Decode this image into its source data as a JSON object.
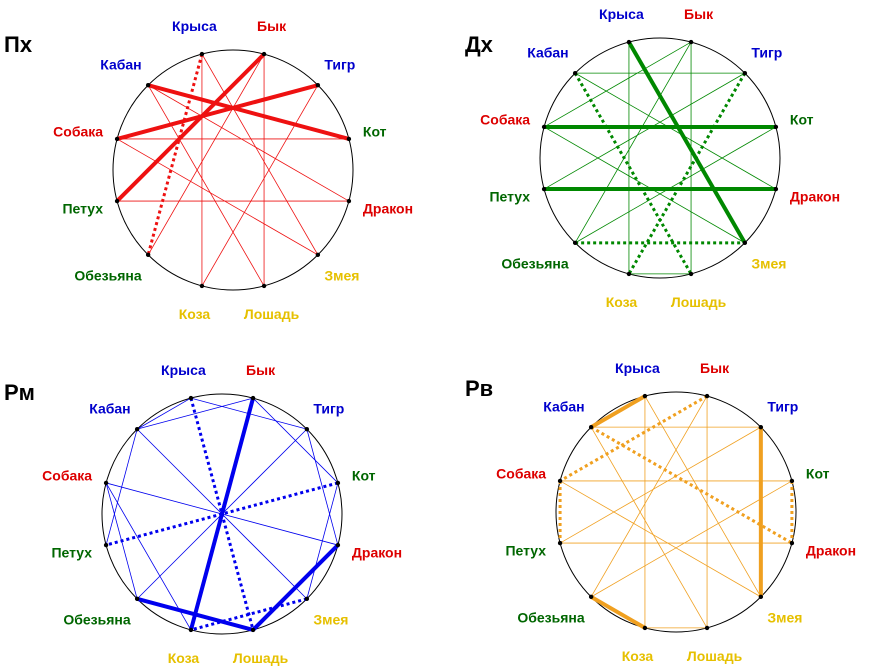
{
  "colors": {
    "blue": "#0000cc",
    "red": "#dd0000",
    "green": "#006600",
    "yellow": "#e6c000",
    "circle": "#000000"
  },
  "panels": [
    {
      "id": "px",
      "title": "Пх",
      "line_color": "#ee1111",
      "labels": [
        {
          "text": "Крыса",
          "color": "blue"
        },
        {
          "text": "Бык",
          "color": "red"
        },
        {
          "text": "Тигр",
          "color": "blue"
        },
        {
          "text": "Кот",
          "color": "green"
        },
        {
          "text": "Дракон",
          "color": "red"
        },
        {
          "text": "Змея",
          "color": "yellow"
        },
        {
          "text": "Лошадь",
          "color": "yellow"
        },
        {
          "text": "Коза",
          "color": "yellow"
        },
        {
          "text": "Обезьяна",
          "color": "green"
        },
        {
          "text": "Петух",
          "color": "green"
        },
        {
          "text": "Собака",
          "color": "red"
        },
        {
          "text": "Кабан",
          "color": "blue"
        }
      ],
      "lines": [
        {
          "from": 1,
          "to": 9,
          "style": "thick"
        },
        {
          "from": 2,
          "to": 10,
          "style": "thick"
        },
        {
          "from": 3,
          "to": 11,
          "style": "thick"
        },
        {
          "from": 0,
          "to": 8,
          "style": "dotted"
        },
        {
          "from": 0,
          "to": 5,
          "style": "thin"
        },
        {
          "from": 0,
          "to": 7,
          "style": "thin"
        },
        {
          "from": 1,
          "to": 6,
          "style": "thin"
        },
        {
          "from": 1,
          "to": 8,
          "style": "thin"
        },
        {
          "from": 2,
          "to": 7,
          "style": "thin"
        },
        {
          "from": 3,
          "to": 10,
          "style": "thin"
        },
        {
          "from": 4,
          "to": 9,
          "style": "thin"
        },
        {
          "from": 4,
          "to": 11,
          "style": "thin"
        },
        {
          "from": 5,
          "to": 10,
          "style": "thin"
        },
        {
          "from": 6,
          "to": 11,
          "style": "thin"
        }
      ]
    },
    {
      "id": "dx",
      "title": "Дх",
      "line_color": "#008800",
      "labels": [
        {
          "text": "Крыса",
          "color": "blue"
        },
        {
          "text": "Бык",
          "color": "red"
        },
        {
          "text": "Тигр",
          "color": "blue"
        },
        {
          "text": "Кот",
          "color": "green"
        },
        {
          "text": "Дракон",
          "color": "red"
        },
        {
          "text": "Змея",
          "color": "yellow"
        },
        {
          "text": "Лошадь",
          "color": "yellow"
        },
        {
          "text": "Коза",
          "color": "yellow"
        },
        {
          "text": "Обезьяна",
          "color": "green"
        },
        {
          "text": "Петух",
          "color": "green"
        },
        {
          "text": "Собака",
          "color": "red"
        },
        {
          "text": "Кабан",
          "color": "blue"
        }
      ],
      "lines": [
        {
          "from": 0,
          "to": 5,
          "style": "thick"
        },
        {
          "from": 3,
          "to": 10,
          "style": "thick"
        },
        {
          "from": 4,
          "to": 9,
          "style": "thick"
        },
        {
          "from": 11,
          "to": 6,
          "style": "dotted"
        },
        {
          "from": 2,
          "to": 7,
          "style": "dotted"
        },
        {
          "from": 8,
          "to": 5,
          "style": "dotted"
        },
        {
          "from": 11,
          "to": 2,
          "style": "thin"
        },
        {
          "from": 0,
          "to": 7,
          "style": "thin"
        },
        {
          "from": 1,
          "to": 6,
          "style": "thin"
        },
        {
          "from": 1,
          "to": 8,
          "style": "thin"
        },
        {
          "from": 11,
          "to": 4,
          "style": "thin"
        },
        {
          "from": 2,
          "to": 9,
          "style": "thin"
        },
        {
          "from": 10,
          "to": 5,
          "style": "thin"
        },
        {
          "from": 10,
          "to": 1,
          "style": "thin"
        },
        {
          "from": 3,
          "to": 8,
          "style": "thin"
        },
        {
          "from": 7,
          "to": 6,
          "style": "thin"
        }
      ]
    },
    {
      "id": "pm",
      "title": "Рм",
      "line_color": "#0000ee",
      "labels": [
        {
          "text": "Крыса",
          "color": "blue"
        },
        {
          "text": "Бык",
          "color": "red"
        },
        {
          "text": "Тигр",
          "color": "blue"
        },
        {
          "text": "Кот",
          "color": "green"
        },
        {
          "text": "Дракон",
          "color": "red"
        },
        {
          "text": "Змея",
          "color": "yellow"
        },
        {
          "text": "Лошадь",
          "color": "yellow"
        },
        {
          "text": "Коза",
          "color": "yellow"
        },
        {
          "text": "Обезьяна",
          "color": "green"
        },
        {
          "text": "Петух",
          "color": "green"
        },
        {
          "text": "Собака",
          "color": "red"
        },
        {
          "text": "Кабан",
          "color": "blue"
        }
      ],
      "lines": [
        {
          "from": 1,
          "to": 7,
          "style": "thick"
        },
        {
          "from": 4,
          "to": 6,
          "style": "thick"
        },
        {
          "from": 8,
          "to": 6,
          "style": "thick"
        },
        {
          "from": 0,
          "to": 6,
          "style": "dotted"
        },
        {
          "from": 3,
          "to": 9,
          "style": "dotted"
        },
        {
          "from": 5,
          "to": 7,
          "style": "dotted"
        },
        {
          "from": 0,
          "to": 2,
          "style": "thin"
        },
        {
          "from": 0,
          "to": 11,
          "style": "thin"
        },
        {
          "from": 1,
          "to": 11,
          "style": "thin"
        },
        {
          "from": 2,
          "to": 4,
          "style": "thin"
        },
        {
          "from": 2,
          "to": 8,
          "style": "thin"
        },
        {
          "from": 3,
          "to": 5,
          "style": "thin"
        },
        {
          "from": 4,
          "to": 10,
          "style": "thin"
        },
        {
          "from": 5,
          "to": 11,
          "style": "thin"
        },
        {
          "from": 10,
          "to": 8,
          "style": "thin"
        },
        {
          "from": 9,
          "to": 11,
          "style": "thin"
        },
        {
          "from": 1,
          "to": 3,
          "style": "thin"
        },
        {
          "from": 10,
          "to": 7,
          "style": "thin"
        }
      ]
    },
    {
      "id": "pv",
      "title": "Рв",
      "line_color": "#f0a020",
      "labels": [
        {
          "text": "Крыса",
          "color": "blue"
        },
        {
          "text": "Бык",
          "color": "red"
        },
        {
          "text": "Тигр",
          "color": "blue"
        },
        {
          "text": "Кот",
          "color": "green"
        },
        {
          "text": "Дракон",
          "color": "red"
        },
        {
          "text": "Змея",
          "color": "yellow"
        },
        {
          "text": "Лошадь",
          "color": "yellow"
        },
        {
          "text": "Коза",
          "color": "yellow"
        },
        {
          "text": "Обезьяна",
          "color": "green"
        },
        {
          "text": "Петух",
          "color": "green"
        },
        {
          "text": "Собака",
          "color": "red"
        },
        {
          "text": "Кабан",
          "color": "blue"
        }
      ],
      "lines": [
        {
          "from": 0,
          "to": 11,
          "style": "thick"
        },
        {
          "from": 2,
          "to": 5,
          "style": "thick"
        },
        {
          "from": 8,
          "to": 7,
          "style": "thick"
        },
        {
          "from": 1,
          "to": 10,
          "style": "dotted"
        },
        {
          "from": 11,
          "to": 4,
          "style": "dotted"
        },
        {
          "from": 10,
          "to": 9,
          "style": "dotted"
        },
        {
          "from": 3,
          "to": 4,
          "style": "dotted"
        },
        {
          "from": 0,
          "to": 7,
          "style": "thin"
        },
        {
          "from": 1,
          "to": 6,
          "style": "thin"
        },
        {
          "from": 11,
          "to": 2,
          "style": "thin"
        },
        {
          "from": 2,
          "to": 9,
          "style": "thin"
        },
        {
          "from": 3,
          "to": 10,
          "style": "thin"
        },
        {
          "from": 3,
          "to": 8,
          "style": "thin"
        },
        {
          "from": 4,
          "to": 9,
          "style": "thin"
        },
        {
          "from": 5,
          "to": 10,
          "style": "thin"
        },
        {
          "from": 1,
          "to": 8,
          "style": "thin"
        },
        {
          "from": 0,
          "to": 5,
          "style": "thin"
        },
        {
          "from": 6,
          "to": 11,
          "style": "thin"
        },
        {
          "from": 7,
          "to": 6,
          "style": "thin"
        }
      ]
    }
  ]
}
